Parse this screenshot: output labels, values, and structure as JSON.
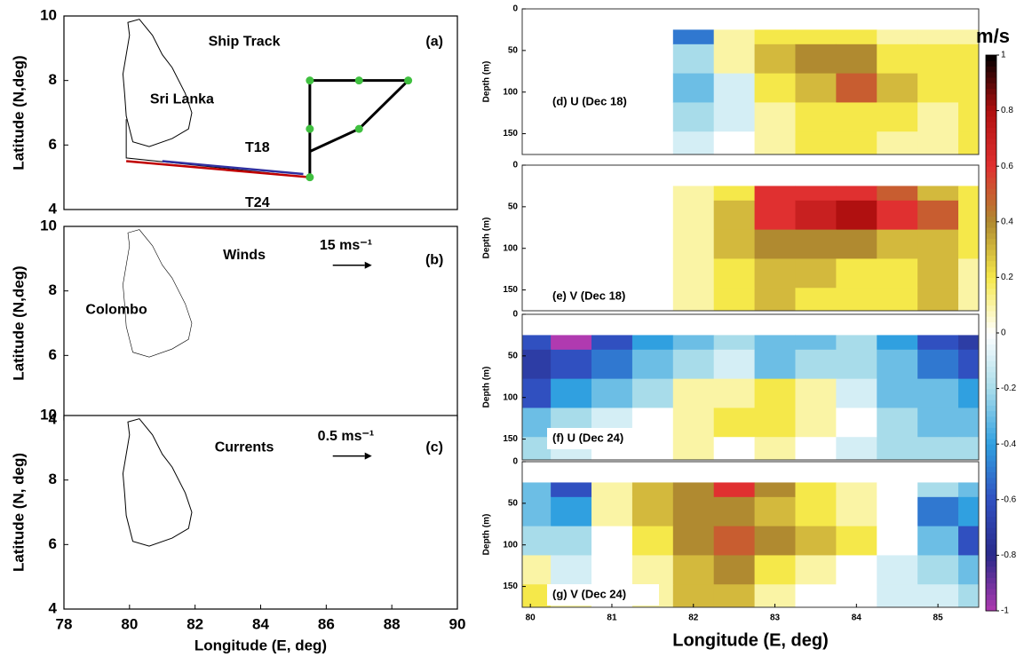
{
  "chart_data": [
    {
      "type": "map",
      "ylabel": "Latitude (N,deg)",
      "xlim": [
        78,
        90
      ],
      "ylim": [
        4,
        10
      ],
      "yticks": [
        4,
        6,
        8,
        10
      ],
      "annotations": [
        "Ship Track",
        "(a)",
        "Sri Lanka",
        "T18",
        "T24"
      ],
      "series": [
        {
          "color": "#000000",
          "x": [
            79.9,
            79.9,
            85.5
          ],
          "y": [
            6.8,
            5.6,
            5.0
          ]
        },
        {
          "color": "#c00000",
          "x": [
            79.9,
            85.5
          ],
          "y": [
            5.5,
            5.0
          ]
        },
        {
          "color": "#3030a0",
          "x": [
            81.0,
            85.3
          ],
          "y": [
            5.5,
            5.1
          ]
        },
        {
          "color": "#000000",
          "x": [
            85.5,
            85.5,
            88.5,
            87.0,
            85.5
          ],
          "y": [
            5.0,
            8.0,
            8.0,
            6.5,
            5.8
          ]
        },
        {
          "color": "#40c040",
          "marker": true,
          "x": [
            85.5,
            85.5,
            85.5,
            87.0,
            88.5,
            87.0
          ],
          "y": [
            5.0,
            6.5,
            8.0,
            8.0,
            8.0,
            6.5
          ]
        }
      ]
    },
    {
      "type": "map",
      "ylabel": "Latitude (N,deg)",
      "xlim": [
        78,
        90
      ],
      "ylim": [
        4,
        10
      ],
      "yticks": [
        4,
        6,
        8,
        10
      ],
      "annotations": [
        "Winds",
        "15 ms⁻¹",
        "(b)",
        "Colombo"
      ],
      "series": []
    },
    {
      "type": "map",
      "ylabel": "Latitude (N, deg)",
      "xlabel": "Longitude (E, deg)",
      "xlim": [
        78,
        90
      ],
      "ylim": [
        4,
        10
      ],
      "yticks": [
        4,
        6,
        8,
        10
      ],
      "xticks": [
        78,
        80,
        82,
        84,
        86,
        88,
        90
      ],
      "annotations": [
        "Currents",
        "0.5 ms⁻¹",
        "(c)"
      ],
      "series": []
    },
    {
      "type": "heatmap",
      "title": "(d) U (Dec 18)",
      "ylabel": "Depth (m)",
      "xlim": [
        79.9,
        85.5
      ],
      "ylim": [
        0,
        175
      ],
      "yticks": [
        0,
        50,
        100,
        150
      ],
      "x": [
        80.0,
        80.5,
        81.0,
        81.5,
        82.0,
        82.5,
        83.0,
        83.5,
        84.0,
        84.5,
        85.0,
        85.5
      ],
      "depths": [
        25,
        60,
        95,
        130,
        165
      ],
      "values": [
        [
          null,
          null,
          null,
          null,
          -0.5,
          0.1,
          0.2,
          0.2,
          0.2,
          0.1,
          0.1,
          0.1
        ],
        [
          null,
          null,
          null,
          null,
          -0.2,
          0.1,
          0.3,
          0.4,
          0.4,
          0.2,
          0.2,
          0.2
        ],
        [
          null,
          null,
          null,
          null,
          -0.3,
          -0.1,
          0.2,
          0.3,
          0.5,
          0.3,
          0.2,
          0.2
        ],
        [
          null,
          null,
          null,
          null,
          -0.2,
          -0.1,
          0.1,
          0.2,
          0.2,
          0.2,
          0.1,
          0.2
        ],
        [
          null,
          null,
          null,
          null,
          -0.1,
          0,
          0.1,
          0.2,
          0.2,
          0.1,
          0.1,
          0.2
        ]
      ]
    },
    {
      "type": "heatmap",
      "title": "(e) V (Dec 18)",
      "ylabel": "Depth (m)",
      "xlim": [
        79.9,
        85.5
      ],
      "ylim": [
        0,
        175
      ],
      "yticks": [
        0,
        50,
        100,
        150
      ],
      "x": [
        80.0,
        80.5,
        81.0,
        81.5,
        82.0,
        82.5,
        83.0,
        83.5,
        84.0,
        84.5,
        85.0,
        85.5
      ],
      "depths": [
        25,
        60,
        95,
        130,
        165
      ],
      "values": [
        [
          null,
          null,
          null,
          null,
          0.1,
          0.2,
          0.6,
          0.6,
          0.6,
          0.5,
          0.3,
          0.2
        ],
        [
          null,
          null,
          null,
          null,
          0.1,
          0.3,
          0.6,
          0.7,
          0.8,
          0.6,
          0.5,
          0.2
        ],
        [
          null,
          null,
          null,
          null,
          0.1,
          0.3,
          0.4,
          0.4,
          0.4,
          0.3,
          0.3,
          0.2
        ],
        [
          null,
          null,
          null,
          null,
          0.1,
          0.2,
          0.3,
          0.3,
          0.2,
          0.2,
          0.3,
          0.1
        ],
        [
          null,
          null,
          null,
          null,
          0.1,
          0.2,
          0.3,
          0.2,
          0.2,
          0.2,
          0.3,
          0.1
        ]
      ]
    },
    {
      "type": "heatmap",
      "title": "(f) U (Dec 24)",
      "ylabel": "Depth (m)",
      "xlim": [
        79.9,
        85.5
      ],
      "ylim": [
        0,
        175
      ],
      "yticks": [
        0,
        50,
        100,
        150
      ],
      "x": [
        80.0,
        80.5,
        81.0,
        81.5,
        82.0,
        82.5,
        83.0,
        83.5,
        84.0,
        84.5,
        85.0,
        85.5
      ],
      "depths": [
        25,
        60,
        95,
        130,
        165
      ],
      "values": [
        [
          -0.6,
          -1,
          -0.6,
          -0.4,
          -0.3,
          -0.2,
          -0.3,
          -0.3,
          -0.2,
          -0.4,
          -0.6,
          -0.7
        ],
        [
          -0.7,
          -0.6,
          -0.5,
          -0.3,
          -0.2,
          -0.1,
          -0.3,
          -0.2,
          -0.2,
          -0.3,
          -0.5,
          -0.6
        ],
        [
          -0.6,
          -0.4,
          -0.3,
          -0.2,
          0.1,
          0.1,
          0.2,
          0.1,
          -0.1,
          -0.3,
          -0.3,
          -0.4
        ],
        [
          -0.3,
          -0.2,
          -0.1,
          0,
          0.1,
          0.2,
          0.2,
          0.1,
          0,
          -0.2,
          -0.3,
          -0.3
        ],
        [
          -0.2,
          -0.1,
          0,
          0,
          0.1,
          0,
          0.1,
          0,
          -0.1,
          -0.2,
          -0.2,
          -0.2
        ]
      ]
    },
    {
      "type": "heatmap",
      "title": "(g) V (Dec 24)",
      "ylabel": "Depth (m)",
      "xlabel": "Longitude (E, deg)",
      "xlim": [
        79.9,
        85.5
      ],
      "ylim": [
        0,
        175
      ],
      "yticks": [
        0,
        50,
        100,
        150
      ],
      "xticks": [
        80,
        81,
        82,
        83,
        84,
        85
      ],
      "x": [
        80.0,
        80.5,
        81.0,
        81.5,
        82.0,
        82.5,
        83.0,
        83.5,
        84.0,
        84.5,
        85.0,
        85.5
      ],
      "depths": [
        25,
        60,
        95,
        130,
        165
      ],
      "values": [
        [
          -0.3,
          -0.6,
          0.1,
          0.3,
          0.4,
          0.6,
          0.4,
          0.2,
          0.1,
          0,
          -0.2,
          -0.3
        ],
        [
          -0.3,
          -0.4,
          0.1,
          0.3,
          0.4,
          0.4,
          0.3,
          0.2,
          0.1,
          0,
          -0.5,
          -0.4
        ],
        [
          -0.2,
          -0.2,
          0,
          0.2,
          0.4,
          0.5,
          0.4,
          0.3,
          0.2,
          0,
          -0.3,
          -0.6
        ],
        [
          0.1,
          -0.1,
          0,
          0.1,
          0.3,
          0.4,
          0.2,
          0.1,
          0,
          -0.1,
          -0.2,
          -0.3
        ],
        [
          0.2,
          0.1,
          0,
          0.1,
          0.3,
          0.3,
          0.1,
          0,
          0,
          -0.1,
          -0.1,
          -0.2
        ]
      ]
    },
    {
      "type": "colorbar",
      "label": "m/s",
      "zlim": [
        -1,
        1
      ],
      "ticks": [
        -1,
        -0.8,
        -0.6,
        -0.4,
        -0.2,
        0,
        0.2,
        0.4,
        0.6,
        0.8,
        1
      ],
      "colors": [
        "#b03ab0",
        "#2a2a8a",
        "#3050c0",
        "#30a0e0",
        "#a8dcea",
        "#ffffff",
        "#f5e84a",
        "#b08a30",
        "#e03030",
        "#b01010",
        "#000000"
      ]
    }
  ]
}
